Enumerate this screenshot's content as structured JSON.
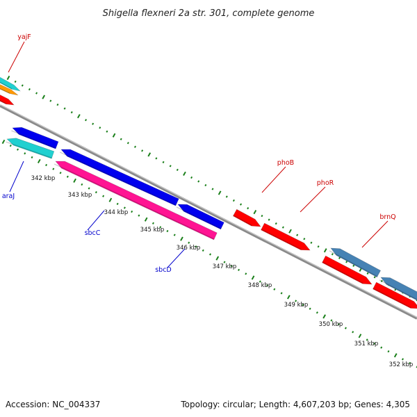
{
  "title": "Shigella flexneri 2a str. 301, complete genome",
  "footer": {
    "accession": "Accession: NC_004337",
    "summary": "Topology: circular; Length: 4,607,203 bp; Genes: 4,305"
  },
  "colors": {
    "backbone": "#8a8a8a",
    "tick": "#1a7f1a",
    "label_red": "#cc0000",
    "label_blue": "#0000cc",
    "gene_red": "#ff0000",
    "gene_blue": "#0000ee",
    "gene_cyan": "#20d0d0",
    "gene_magenta": "#ff1493",
    "gene_orange": "#ff9900",
    "gene_steel": "#4682b4"
  },
  "scale_labels": [
    "342 kbp",
    "343 kbp",
    "344 kbp",
    "345 kbp",
    "346 kbp",
    "347 kbp",
    "348 kbp",
    "349 kbp",
    "350 kbp",
    "351 kbp",
    "352 kbp"
  ],
  "gene_labels": [
    {
      "name": "yajF",
      "color": "label_red"
    },
    {
      "name": "araJ",
      "color": "label_blue"
    },
    {
      "name": "sbcC",
      "color": "label_blue"
    },
    {
      "name": "sbcD",
      "color": "label_blue"
    },
    {
      "name": "phoB",
      "color": "label_red"
    },
    {
      "name": "phoR",
      "color": "label_red"
    },
    {
      "name": "brnQ",
      "color": "label_red"
    }
  ]
}
